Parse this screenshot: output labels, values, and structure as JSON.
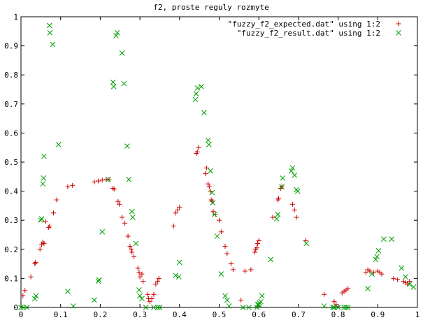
{
  "chart_data": {
    "type": "scatter",
    "title": "f2, proste reguly rozmyte",
    "xlabel": "",
    "ylabel": "",
    "xlim": [
      0,
      1
    ],
    "ylim": [
      0,
      1
    ],
    "x_ticks": [
      "0",
      "0.1",
      "0.2",
      "0.3",
      "0.4",
      "0.5",
      "0.6",
      "0.7",
      "0.8",
      "0.9",
      "1"
    ],
    "y_ticks": [
      "0",
      "0.1",
      "0.2",
      "0.3",
      "0.4",
      "0.5",
      "0.6",
      "0.7",
      "0.8",
      "0.9",
      "1"
    ],
    "grid": false,
    "legend_position": "top-right",
    "series": [
      {
        "name": "\"fuzzy_f2_expected.dat\" using 1:2",
        "marker": "plus",
        "color": "#cc0000",
        "points": [
          [
            0.005,
            0.04
          ],
          [
            0.01,
            0.058
          ],
          [
            0.025,
            0.105
          ],
          [
            0.035,
            0.15
          ],
          [
            0.037,
            0.155
          ],
          [
            0.048,
            0.2
          ],
          [
            0.052,
            0.215
          ],
          [
            0.055,
            0.225
          ],
          [
            0.058,
            0.22
          ],
          [
            0.062,
            0.295
          ],
          [
            0.07,
            0.275
          ],
          [
            0.072,
            0.28
          ],
          [
            0.082,
            0.325
          ],
          [
            0.09,
            0.37
          ],
          [
            0.118,
            0.415
          ],
          [
            0.13,
            0.42
          ],
          [
            0.185,
            0.432
          ],
          [
            0.195,
            0.435
          ],
          [
            0.205,
            0.438
          ],
          [
            0.215,
            0.44
          ],
          [
            0.222,
            0.44
          ],
          [
            0.232,
            0.41
          ],
          [
            0.235,
            0.407
          ],
          [
            0.245,
            0.365
          ],
          [
            0.248,
            0.355
          ],
          [
            0.255,
            0.31
          ],
          [
            0.262,
            0.29
          ],
          [
            0.27,
            0.245
          ],
          [
            0.275,
            0.21
          ],
          [
            0.278,
            0.2
          ],
          [
            0.28,
            0.19
          ],
          [
            0.285,
            0.175
          ],
          [
            0.295,
            0.135
          ],
          [
            0.298,
            0.12
          ],
          [
            0.3,
            0.105
          ],
          [
            0.305,
            0.115
          ],
          [
            0.308,
            0.09
          ],
          [
            0.32,
            0.045
          ],
          [
            0.322,
            0.03
          ],
          [
            0.325,
            0.02
          ],
          [
            0.33,
            0.03
          ],
          [
            0.335,
            0.045
          ],
          [
            0.34,
            0.08
          ],
          [
            0.345,
            0.09
          ],
          [
            0.348,
            0.1
          ],
          [
            0.385,
            0.28
          ],
          [
            0.39,
            0.325
          ],
          [
            0.395,
            0.335
          ],
          [
            0.4,
            0.345
          ],
          [
            0.442,
            0.53
          ],
          [
            0.445,
            0.535
          ],
          [
            0.448,
            0.55
          ],
          [
            0.465,
            0.46
          ],
          [
            0.468,
            0.48
          ],
          [
            0.472,
            0.425
          ],
          [
            0.475,
            0.415
          ],
          [
            0.478,
            0.4
          ],
          [
            0.48,
            0.37
          ],
          [
            0.482,
            0.365
          ],
          [
            0.485,
            0.33
          ],
          [
            0.49,
            0.32
          ],
          [
            0.5,
            0.3
          ],
          [
            0.505,
            0.26
          ],
          [
            0.515,
            0.21
          ],
          [
            0.52,
            0.185
          ],
          [
            0.53,
            0.15
          ],
          [
            0.535,
            0.13
          ],
          [
            0.555,
            0.025
          ],
          [
            0.565,
            0.125
          ],
          [
            0.58,
            0.13
          ],
          [
            0.59,
            0.19
          ],
          [
            0.592,
            0.2
          ],
          [
            0.595,
            0.205
          ],
          [
            0.597,
            0.22
          ],
          [
            0.6,
            0.23
          ],
          [
            0.635,
            0.31
          ],
          [
            0.648,
            0.37
          ],
          [
            0.65,
            0.375
          ],
          [
            0.655,
            0.41
          ],
          [
            0.658,
            0.415
          ],
          [
            0.685,
            0.355
          ],
          [
            0.69,
            0.335
          ],
          [
            0.695,
            0.31
          ],
          [
            0.718,
            0.23
          ],
          [
            0.765,
            0.045
          ],
          [
            0.79,
            0.02
          ],
          [
            0.795,
            0.01
          ],
          [
            0.81,
            0.05
          ],
          [
            0.815,
            0.055
          ],
          [
            0.82,
            0.06
          ],
          [
            0.825,
            0.065
          ],
          [
            0.87,
            0.12
          ],
          [
            0.875,
            0.13
          ],
          [
            0.88,
            0.125
          ],
          [
            0.89,
            0.12
          ],
          [
            0.9,
            0.125
          ],
          [
            0.905,
            0.12
          ],
          [
            0.91,
            0.115
          ],
          [
            0.94,
            0.1
          ],
          [
            0.95,
            0.095
          ],
          [
            0.965,
            0.09
          ],
          [
            0.97,
            0.085
          ],
          [
            0.975,
            0.08
          ],
          [
            0.98,
            0.09
          ]
        ]
      },
      {
        "name": "\"fuzzy_f2_result.dat\" using 1:2",
        "marker": "cross",
        "color": "#00a000",
        "points": [
          [
            0.0,
            0.0
          ],
          [
            0.005,
            0.0
          ],
          [
            0.015,
            0.0
          ],
          [
            0.035,
            0.03
          ],
          [
            0.038,
            0.04
          ],
          [
            0.05,
            0.3
          ],
          [
            0.052,
            0.305
          ],
          [
            0.055,
            0.425
          ],
          [
            0.057,
            0.445
          ],
          [
            0.058,
            0.52
          ],
          [
            0.072,
            0.97
          ],
          [
            0.073,
            0.945
          ],
          [
            0.08,
            0.905
          ],
          [
            0.095,
            0.56
          ],
          [
            0.118,
            0.055
          ],
          [
            0.132,
            0.005
          ],
          [
            0.185,
            0.025
          ],
          [
            0.195,
            0.09
          ],
          [
            0.197,
            0.095
          ],
          [
            0.205,
            0.26
          ],
          [
            0.22,
            0.44
          ],
          [
            0.232,
            0.775
          ],
          [
            0.234,
            0.76
          ],
          [
            0.24,
            0.935
          ],
          [
            0.243,
            0.945
          ],
          [
            0.255,
            0.875
          ],
          [
            0.26,
            0.77
          ],
          [
            0.268,
            0.555
          ],
          [
            0.272,
            0.44
          ],
          [
            0.28,
            0.33
          ],
          [
            0.282,
            0.31
          ],
          [
            0.29,
            0.22
          ],
          [
            0.298,
            0.06
          ],
          [
            0.3,
            0.04
          ],
          [
            0.305,
            0.03
          ],
          [
            0.315,
            0.0
          ],
          [
            0.335,
            0.0
          ],
          [
            0.345,
            0.0
          ],
          [
            0.35,
            0.0
          ],
          [
            0.39,
            0.11
          ],
          [
            0.398,
            0.105
          ],
          [
            0.4,
            0.155
          ],
          [
            0.44,
            0.715
          ],
          [
            0.442,
            0.735
          ],
          [
            0.445,
            0.755
          ],
          [
            0.455,
            0.76
          ],
          [
            0.462,
            0.67
          ],
          [
            0.472,
            0.575
          ],
          [
            0.474,
            0.56
          ],
          [
            0.478,
            0.47
          ],
          [
            0.482,
            0.395
          ],
          [
            0.484,
            0.36
          ],
          [
            0.488,
            0.32
          ],
          [
            0.495,
            0.245
          ],
          [
            0.505,
            0.115
          ],
          [
            0.515,
            0.04
          ],
          [
            0.52,
            0.025
          ],
          [
            0.525,
            0.005
          ],
          [
            0.56,
            0.0
          ],
          [
            0.575,
            0.0
          ],
          [
            0.595,
            0.0
          ],
          [
            0.597,
            0.01
          ],
          [
            0.6,
            0.01
          ],
          [
            0.602,
            0.015
          ],
          [
            0.605,
            0.02
          ],
          [
            0.608,
            0.04
          ],
          [
            0.63,
            0.165
          ],
          [
            0.645,
            0.305
          ],
          [
            0.648,
            0.32
          ],
          [
            0.658,
            0.415
          ],
          [
            0.66,
            0.445
          ],
          [
            0.682,
            0.47
          ],
          [
            0.685,
            0.48
          ],
          [
            0.69,
            0.455
          ],
          [
            0.695,
            0.405
          ],
          [
            0.698,
            0.4
          ],
          [
            0.72,
            0.22
          ],
          [
            0.765,
            0.005
          ],
          [
            0.787,
            0.0
          ],
          [
            0.79,
            0.0
          ],
          [
            0.8,
            0.0
          ],
          [
            0.815,
            0.0
          ],
          [
            0.82,
            0.0
          ],
          [
            0.825,
            0.0
          ],
          [
            0.875,
            0.065
          ],
          [
            0.885,
            0.115
          ],
          [
            0.895,
            0.165
          ],
          [
            0.898,
            0.175
          ],
          [
            0.902,
            0.195
          ],
          [
            0.915,
            0.235
          ],
          [
            0.935,
            0.235
          ],
          [
            0.96,
            0.135
          ],
          [
            0.97,
            0.105
          ],
          [
            0.98,
            0.08
          ],
          [
            0.99,
            0.07
          ]
        ]
      }
    ]
  }
}
